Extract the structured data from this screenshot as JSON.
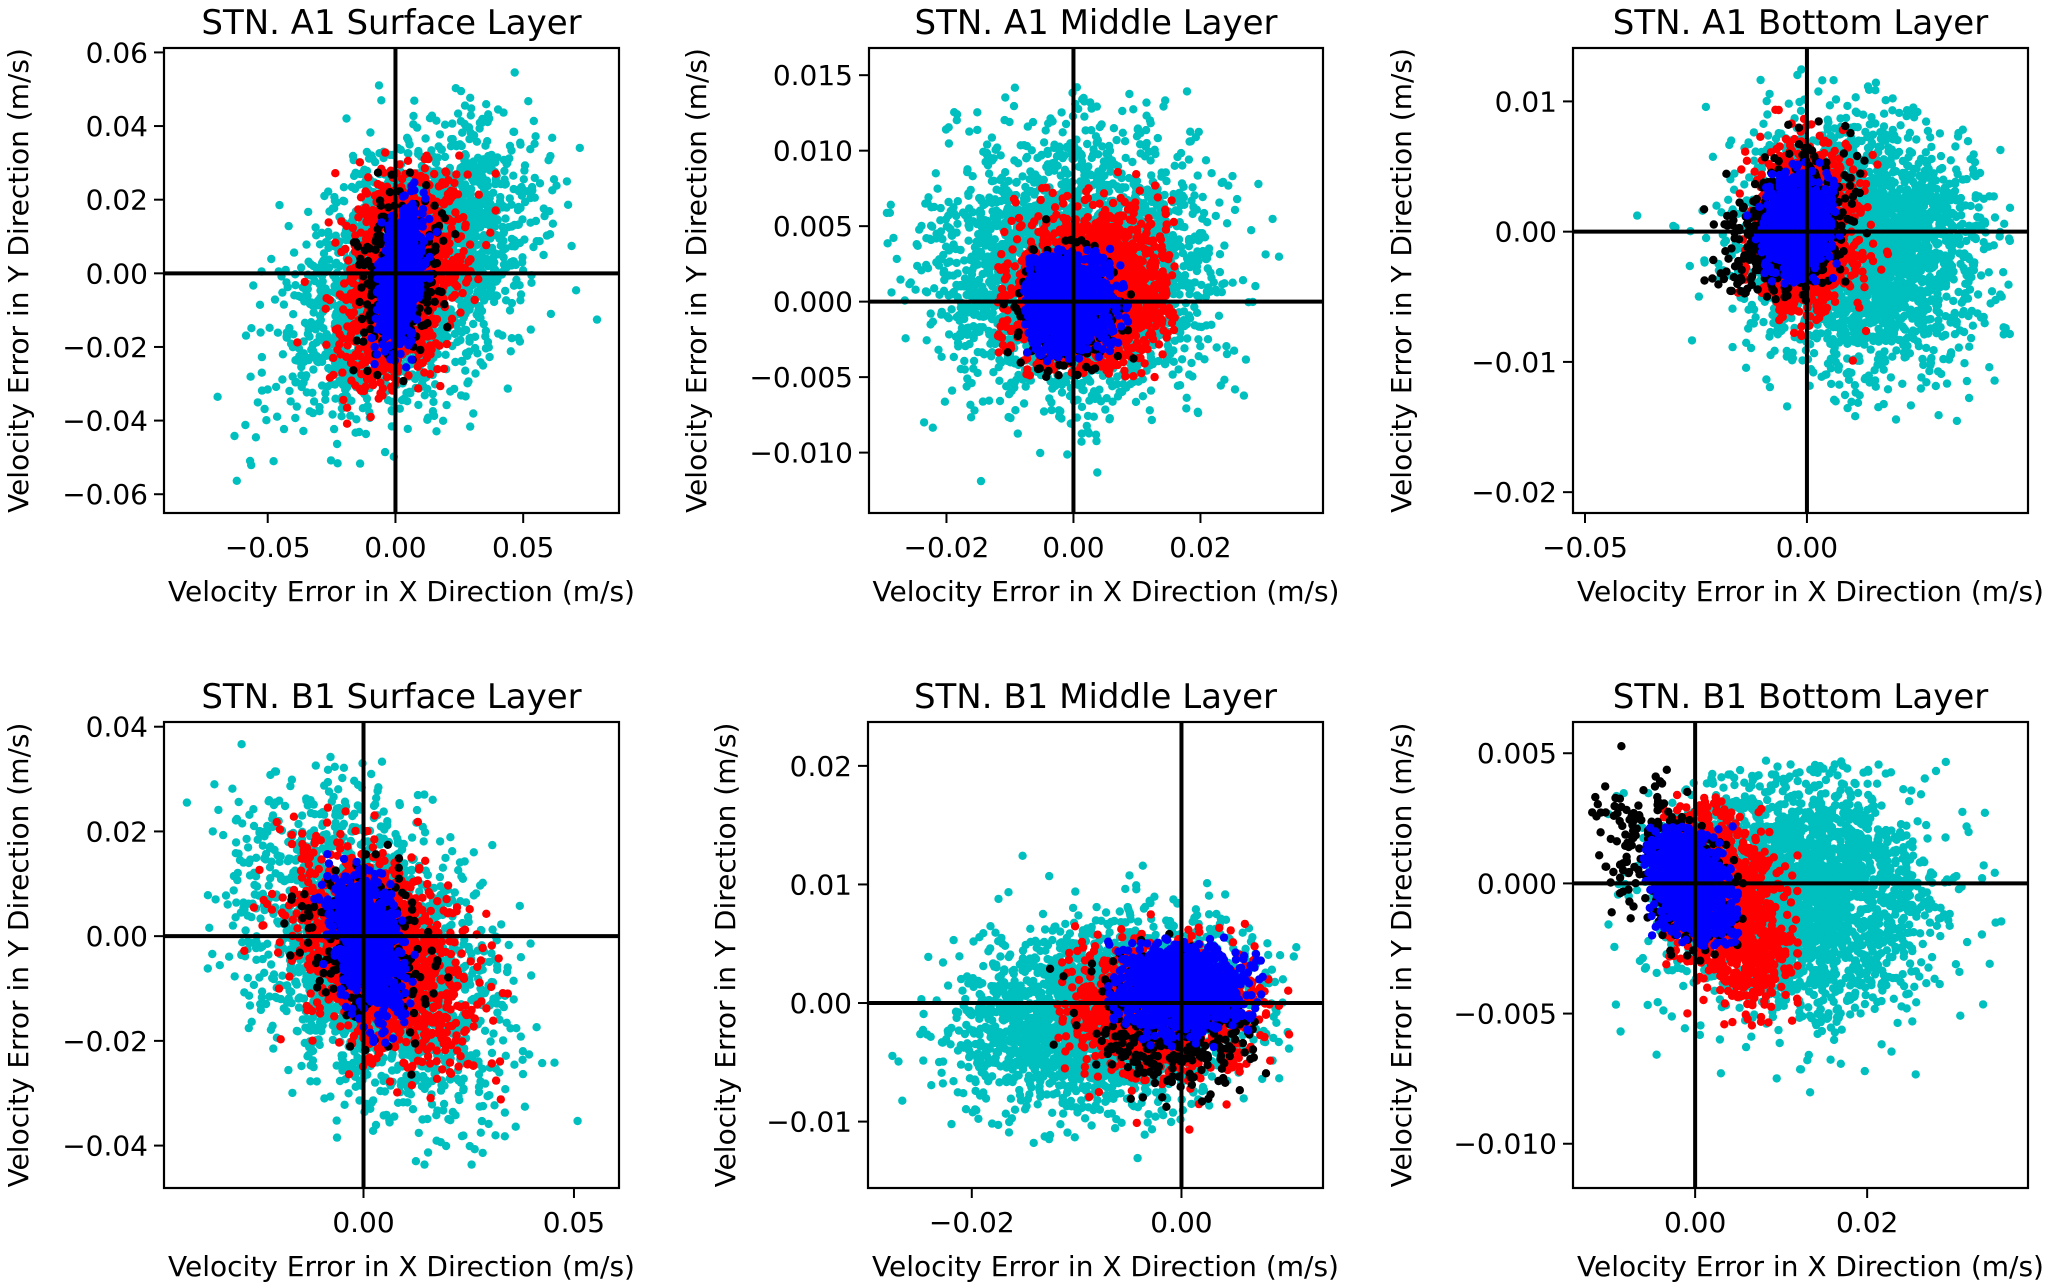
{
  "figure": {
    "layout": "2 rows x 3 columns of scatter plots",
    "series_colors": {
      "cyan": "#00bfbf",
      "red": "#ff0000",
      "black": "#000000",
      "blue": "#0000ff"
    },
    "series_draw_order": [
      "cyan",
      "red",
      "black",
      "blue"
    ]
  },
  "chart_data": [
    {
      "type": "scatter",
      "title": "STN. A1 Surface Layer",
      "xlabel": "Velocity Error in X Direction (m/s)",
      "ylabel": "Velocity Error in Y Direction (m/s)",
      "xlim": [
        -0.0906,
        0.0875
      ],
      "ylim": [
        -0.0651,
        0.0612
      ],
      "xticks": [
        -0.05,
        0.0,
        0.05
      ],
      "xtick_labels": [
        "−0.05",
        "0.00",
        "0.05"
      ],
      "yticks": [
        -0.06,
        -0.04,
        -0.02,
        0.0,
        0.02,
        0.04,
        0.06
      ],
      "ytick_labels": [
        "−0.06",
        "−0.04",
        "−0.02",
        "0.00",
        "0.02",
        "0.04",
        "0.06"
      ],
      "reference_lines": {
        "x": 0,
        "y": 0
      },
      "grid": false,
      "series": [
        {
          "name": "cyan",
          "n": 2600,
          "center": [
            0.005,
            0.0
          ],
          "spread": [
            0.022,
            0.018
          ],
          "corr": 0.45,
          "extent_x": [
            -0.085,
            0.08
          ],
          "extent_y": [
            -0.058,
            0.055
          ]
        },
        {
          "name": "red",
          "n": 1500,
          "center": [
            0.002,
            -0.001
          ],
          "spread": [
            0.011,
            0.013
          ],
          "corr": 0.25,
          "extent_x": [
            -0.05,
            0.045
          ],
          "extent_y": [
            -0.045,
            0.037
          ]
        },
        {
          "name": "black",
          "n": 350,
          "center": [
            0.002,
            0.0
          ],
          "spread": [
            0.008,
            0.011
          ],
          "corr": 0.2,
          "extent_x": [
            -0.025,
            0.03
          ],
          "extent_y": [
            -0.03,
            0.032
          ]
        },
        {
          "name": "blue",
          "n": 900,
          "center": [
            0.002,
            0.0
          ],
          "spread": [
            0.004,
            0.009
          ],
          "corr": 0.35,
          "extent_x": [
            -0.02,
            0.025
          ],
          "extent_y": [
            -0.026,
            0.025
          ]
        }
      ]
    },
    {
      "type": "scatter",
      "title": "STN. A1 Middle Layer",
      "xlabel": "Velocity Error in X Direction (m/s)",
      "ylabel": "Velocity Error in Y Direction (m/s)",
      "xlim": [
        -0.0322,
        0.0393
      ],
      "ylim": [
        -0.014,
        0.0168
      ],
      "xticks": [
        -0.02,
        0.0,
        0.02
      ],
      "xtick_labels": [
        "−0.02",
        "0.00",
        "0.02"
      ],
      "yticks": [
        -0.01,
        -0.005,
        0.0,
        0.005,
        0.01,
        0.015
      ],
      "ytick_labels": [
        "−0.010",
        "−0.005",
        "0.000",
        "0.005",
        "0.010",
        "0.015"
      ],
      "reference_lines": {
        "x": 0,
        "y": 0
      },
      "grid": false,
      "series": [
        {
          "name": "cyan",
          "n": 3000,
          "center": [
            0.0,
            0.002
          ],
          "spread": [
            0.01,
            0.0042
          ],
          "corr": 0.0,
          "extent_x": [
            -0.03,
            0.037
          ],
          "extent_y": [
            -0.0125,
            0.0155
          ]
        },
        {
          "name": "red",
          "n": 1800,
          "center": [
            0.003,
            0.0008
          ],
          "spread": [
            0.0065,
            0.0025
          ],
          "corr": 0.1,
          "extent_x": [
            -0.012,
            0.016
          ],
          "extent_y": [
            -0.005,
            0.0095
          ]
        },
        {
          "name": "black",
          "n": 300,
          "center": [
            -0.001,
            -0.0005
          ],
          "spread": [
            0.004,
            0.0025
          ],
          "corr": 0.0,
          "extent_x": [
            -0.011,
            0.011
          ],
          "extent_y": [
            -0.005,
            0.0055
          ]
        },
        {
          "name": "blue",
          "n": 1200,
          "center": [
            -0.001,
            0.0
          ],
          "spread": [
            0.0035,
            0.0017
          ],
          "corr": 0.0,
          "extent_x": [
            -0.008,
            0.01
          ],
          "extent_y": [
            -0.004,
            0.0035
          ]
        }
      ]
    },
    {
      "type": "scatter",
      "title": "STN. A1 Bottom Layer",
      "xlabel": "Velocity Error in X Direction (m/s)",
      "ylabel": "Velocity Error in Y Direction (m/s)",
      "xlim": [
        -0.0527,
        0.0498
      ],
      "ylim": [
        -0.0216,
        0.0141
      ],
      "xticks": [
        -0.05,
        0.0
      ],
      "xtick_labels": [
        "−0.05",
        "0.00"
      ],
      "yticks": [
        -0.02,
        -0.01,
        0.0,
        0.01
      ],
      "ytick_labels": [
        "−0.02",
        "−0.01",
        "0.00",
        "0.01"
      ],
      "reference_lines": {
        "x": 0,
        "y": 0
      },
      "grid": false,
      "series": [
        {
          "name": "cyan",
          "n": 2800,
          "center": [
            0.012,
            -0.001
          ],
          "spread": [
            0.013,
            0.0045
          ],
          "corr": -0.1,
          "extent_x": [
            -0.05,
            0.046
          ],
          "extent_y": [
            -0.0195,
            0.0125
          ]
        },
        {
          "name": "red",
          "n": 1300,
          "center": [
            0.0,
            0.0
          ],
          "spread": [
            0.0055,
            0.003
          ],
          "corr": 0.0,
          "extent_x": [
            -0.016,
            0.02
          ],
          "extent_y": [
            -0.011,
            0.0095
          ]
        },
        {
          "name": "black",
          "n": 500,
          "center": [
            -0.004,
            0.0
          ],
          "spread": [
            0.007,
            0.0028
          ],
          "corr": 0.3,
          "extent_x": [
            -0.03,
            0.015
          ],
          "extent_y": [
            -0.0055,
            0.01
          ]
        },
        {
          "name": "blue",
          "n": 1100,
          "center": [
            -0.002,
            0.0005
          ],
          "spread": [
            0.0035,
            0.0018
          ],
          "corr": 0.1,
          "extent_x": [
            -0.02,
            0.008
          ],
          "extent_y": [
            -0.004,
            0.0055
          ]
        }
      ]
    },
    {
      "type": "scatter",
      "title": "STN. B1 Surface Layer",
      "xlabel": "Velocity Error in X Direction (m/s)",
      "ylabel": "Velocity Error in Y Direction (m/s)",
      "xlim": [
        -0.0474,
        0.0607
      ],
      "ylim": [
        -0.0481,
        0.0409
      ],
      "xticks": [
        0.0,
        0.05
      ],
      "xtick_labels": [
        "0.00",
        "0.05"
      ],
      "yticks": [
        -0.04,
        -0.02,
        0.0,
        0.02,
        0.04
      ],
      "ytick_labels": [
        "−0.04",
        "−0.02",
        "0.00",
        "0.02",
        "0.04"
      ],
      "reference_lines": {
        "x": 0,
        "y": 0
      },
      "grid": false,
      "series": [
        {
          "name": "cyan",
          "n": 2400,
          "center": [
            0.002,
            -0.004
          ],
          "spread": [
            0.014,
            0.014
          ],
          "corr": -0.4,
          "extent_x": [
            -0.043,
            0.057
          ],
          "extent_y": [
            -0.044,
            0.037
          ]
        },
        {
          "name": "red",
          "n": 1400,
          "center": [
            0.004,
            -0.004
          ],
          "spread": [
            0.01,
            0.01
          ],
          "corr": -0.45,
          "extent_x": [
            -0.03,
            0.042
          ],
          "extent_y": [
            -0.033,
            0.025
          ]
        },
        {
          "name": "black",
          "n": 300,
          "center": [
            0.001,
            -0.002
          ],
          "spread": [
            0.007,
            0.008
          ],
          "corr": -0.3,
          "extent_x": [
            -0.02,
            0.028
          ],
          "extent_y": [
            -0.027,
            0.02
          ]
        },
        {
          "name": "blue",
          "n": 900,
          "center": [
            0.001,
            -0.001
          ],
          "spread": [
            0.004,
            0.0065
          ],
          "corr": -0.3,
          "extent_x": [
            -0.015,
            0.018
          ],
          "extent_y": [
            -0.022,
            0.016
          ]
        }
      ]
    },
    {
      "type": "scatter",
      "title": "STN. B1 Middle Layer",
      "xlabel": "Velocity Error in X Direction (m/s)",
      "ylabel": "Velocity Error in Y Direction (m/s)",
      "xlim": [
        -0.0299,
        0.0135
      ],
      "ylim": [
        -0.0156,
        0.0237
      ],
      "xticks": [
        -0.02,
        0.0
      ],
      "xtick_labels": [
        "−0.02",
        "0.00"
      ],
      "yticks": [
        -0.01,
        0.0,
        0.01,
        0.02
      ],
      "ytick_labels": [
        "−0.01",
        "0.00",
        "0.01",
        "0.02"
      ],
      "reference_lines": {
        "x": 0,
        "y": 0
      },
      "grid": false,
      "series": [
        {
          "name": "cyan",
          "n": 2600,
          "center": [
            -0.007,
            -0.001
          ],
          "spread": [
            0.0065,
            0.0038
          ],
          "corr": 0.2,
          "extent_x": [
            -0.028,
            0.011
          ],
          "extent_y": [
            -0.014,
            0.022
          ]
        },
        {
          "name": "red",
          "n": 1400,
          "center": [
            -0.002,
            -0.0005
          ],
          "spread": [
            0.004,
            0.0025
          ],
          "corr": 0.0,
          "extent_x": [
            -0.012,
            0.0115
          ],
          "extent_y": [
            -0.011,
            0.011
          ]
        },
        {
          "name": "black",
          "n": 400,
          "center": [
            -0.001,
            -0.002
          ],
          "spread": [
            0.0035,
            0.0028
          ],
          "corr": 0.0,
          "extent_x": [
            -0.013,
            0.009
          ],
          "extent_y": [
            -0.0105,
            0.006
          ]
        },
        {
          "name": "blue",
          "n": 1300,
          "center": [
            0.0,
            0.0012
          ],
          "spread": [
            0.003,
            0.0017
          ],
          "corr": 0.0,
          "extent_x": [
            -0.007,
            0.008
          ],
          "extent_y": [
            -0.0075,
            0.0056
          ]
        }
      ]
    },
    {
      "type": "scatter",
      "title": "STN. B1 Bottom Layer",
      "xlabel": "Velocity Error in X Direction (m/s)",
      "ylabel": "Velocity Error in Y Direction (m/s)",
      "xlim": [
        -0.0142,
        0.0387
      ],
      "ylim": [
        -0.0117,
        0.0062
      ],
      "xticks": [
        0.0,
        0.02
      ],
      "xtick_labels": [
        "0.00",
        "0.02"
      ],
      "yticks": [
        -0.01,
        -0.005,
        0.0,
        0.005
      ],
      "ytick_labels": [
        "−0.010",
        "−0.005",
        "0.000",
        "0.005"
      ],
      "reference_lines": {
        "x": 0,
        "y": 0
      },
      "grid": false,
      "series": [
        {
          "name": "cyan",
          "n": 2800,
          "center": [
            0.012,
            -0.0005
          ],
          "spread": [
            0.0075,
            0.0022
          ],
          "corr": 0.0,
          "extent_x": [
            -0.011,
            0.036
          ],
          "extent_y": [
            -0.0108,
            0.0048
          ]
        },
        {
          "name": "red",
          "n": 1200,
          "center": [
            0.004,
            -0.0008
          ],
          "spread": [
            0.0035,
            0.0018
          ],
          "corr": -0.4,
          "extent_x": [
            -0.007,
            0.012
          ],
          "extent_y": [
            -0.0055,
            0.0035
          ]
        },
        {
          "name": "black",
          "n": 400,
          "center": [
            -0.003,
            0.0005
          ],
          "spread": [
            0.0045,
            0.0018
          ],
          "corr": -0.6,
          "extent_x": [
            -0.012,
            0.006
          ],
          "extent_y": [
            -0.003,
            0.0055
          ]
        },
        {
          "name": "blue",
          "n": 1100,
          "center": [
            -0.0005,
            0.0
          ],
          "spread": [
            0.0025,
            0.0011
          ],
          "corr": -0.4,
          "extent_x": [
            -0.006,
            0.005
          ],
          "extent_y": [
            -0.0025,
            0.0022
          ]
        }
      ]
    }
  ]
}
